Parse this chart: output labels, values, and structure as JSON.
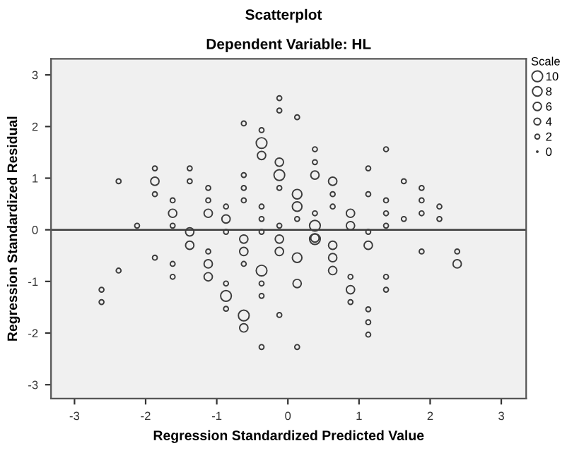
{
  "chart_data": {
    "type": "bubble",
    "title": "Scatterplot",
    "subtitle": "Dependent Variable: HL",
    "xlabel": "Regression Standardized Predicted Value",
    "ylabel": "Regression Standardized Residual",
    "legend_title": "Scale",
    "series": [
      {
        "color": "#3c3c3c",
        "x": [
          -2.38,
          -2.12,
          -1.87,
          -1.87,
          -1.87,
          -1.62,
          -1.62,
          -1.62,
          -1.38,
          -1.38,
          -1.38,
          -1.12,
          -1.12,
          -1.12,
          -0.87,
          -0.87,
          -0.87,
          -0.62,
          -0.62,
          -0.62,
          -0.62,
          -0.37,
          -0.37,
          -0.37,
          -0.37,
          -0.37,
          -0.37,
          -0.12,
          -0.12,
          -0.12,
          -0.12,
          -0.12,
          -0.12,
          0.13,
          0.13,
          0.13,
          0.13,
          0.38,
          0.38,
          0.38,
          0.38,
          0.38,
          0.38,
          0.63,
          0.63,
          0.63,
          0.88,
          0.88,
          1.13,
          1.13,
          1.13,
          1.38,
          1.38,
          1.38,
          1.38,
          1.63,
          1.63,
          1.88,
          1.88,
          1.88,
          2.13,
          2.13,
          -1.38,
          -0.62,
          -0.12,
          -1.12,
          -0.62,
          -0.12,
          0.13,
          -1.87,
          -2.38,
          -1.62,
          -1.62,
          -1.12,
          -1.12,
          -0.62,
          -0.37,
          -2.62,
          -2.62,
          -0.87,
          -0.87,
          -0.87,
          -0.62,
          -0.62,
          -0.37,
          -0.37,
          -0.37,
          -0.12,
          0.13,
          0.13,
          0.38,
          0.63,
          1.13,
          0.63,
          0.63,
          0.88,
          0.88,
          0.88,
          1.38,
          1.38,
          1.13,
          1.13,
          1.13,
          1.88,
          2.38,
          2.38
        ],
        "values": [
          0.94,
          0.08,
          1.19,
          0.94,
          0.69,
          0.57,
          0.32,
          0.08,
          1.19,
          0.94,
          -0.04,
          0.81,
          0.57,
          0.32,
          0.45,
          0.21,
          -0.04,
          2.06,
          1.06,
          0.81,
          0.57,
          1.93,
          1.68,
          1.44,
          0.45,
          0.21,
          -0.04,
          2.55,
          2.31,
          1.31,
          1.06,
          0.81,
          0.08,
          2.18,
          0.69,
          0.45,
          0.21,
          1.56,
          1.31,
          1.06,
          0.32,
          0.08,
          -0.16,
          0.94,
          0.69,
          0.45,
          0.32,
          0.08,
          1.19,
          0.69,
          -0.04,
          1.56,
          0.57,
          0.32,
          0.08,
          0.94,
          0.21,
          0.81,
          0.57,
          0.32,
          0.45,
          0.21,
          -0.3,
          -0.18,
          -0.18,
          -0.42,
          -0.42,
          -0.42,
          -0.54,
          -0.54,
          -0.79,
          -0.66,
          -0.91,
          -0.66,
          -0.91,
          -0.66,
          -0.79,
          -1.16,
          -1.4,
          -1.04,
          -1.28,
          -1.53,
          -1.66,
          -1.9,
          -1.04,
          -1.28,
          -2.27,
          -1.65,
          -1.04,
          -2.27,
          -0.18,
          -0.3,
          -0.3,
          -0.54,
          -0.79,
          -0.91,
          -1.16,
          -1.4,
          -0.91,
          -1.16,
          -1.54,
          -1.79,
          -2.03,
          -0.42,
          -0.42,
          -0.66
        ],
        "sizes": [
          2,
          2,
          2,
          6,
          2,
          2,
          6,
          2,
          2,
          2,
          6,
          2,
          2,
          6,
          2,
          6,
          2,
          2,
          2,
          2,
          2,
          2,
          10,
          6,
          2,
          2,
          2,
          2,
          2,
          6,
          10,
          2,
          2,
          2,
          8,
          8,
          2,
          2,
          2,
          6,
          2,
          10,
          6,
          6,
          2,
          2,
          6,
          6,
          2,
          2,
          2,
          2,
          2,
          2,
          2,
          2,
          2,
          2,
          2,
          2,
          2,
          2,
          6,
          6,
          6,
          2,
          6,
          6,
          8,
          2,
          2,
          2,
          2,
          6,
          6,
          2,
          10,
          2,
          2,
          2,
          10,
          2,
          10,
          6,
          2,
          2,
          2,
          2,
          6,
          2,
          10,
          6,
          6,
          6,
          6,
          2,
          6,
          2,
          2,
          2,
          2,
          2,
          2,
          2,
          2,
          6
        ]
      }
    ],
    "size_legend": [
      10,
      8,
      6,
      4,
      2,
      0
    ],
    "xlim": [
      -3.33,
      3.35
    ],
    "ylim": [
      -3.27,
      3.31
    ],
    "xticks": [
      -3,
      -2,
      -1,
      0,
      1,
      2,
      3
    ],
    "yticks": [
      -3,
      -2,
      -1,
      0,
      1,
      2,
      3
    ],
    "ref_lines": [
      {
        "axis": "y",
        "value": 0,
        "color": "#3c3c3c"
      }
    ],
    "grid": false,
    "marker": "circle"
  }
}
